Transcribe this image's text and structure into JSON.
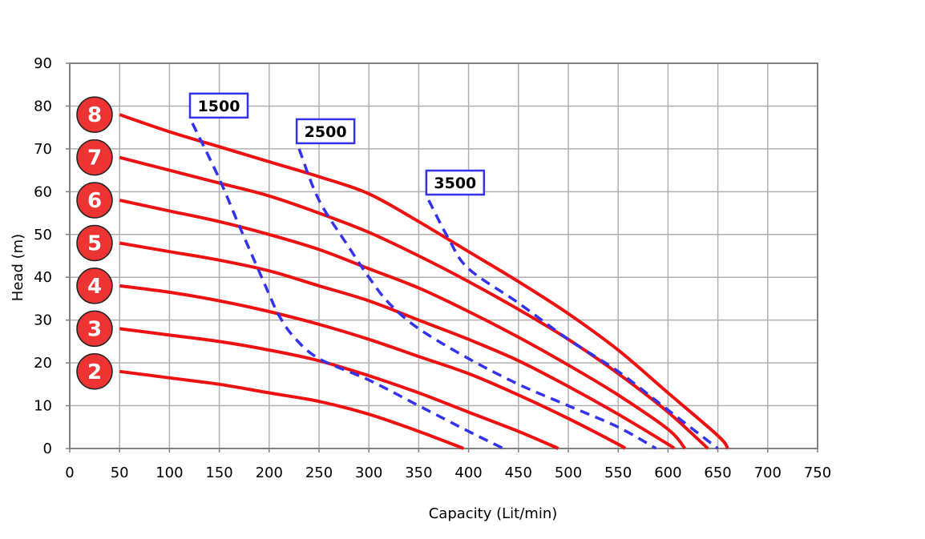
{
  "chart_data": {
    "type": "line",
    "title": "",
    "xlabel": "Capacity (Lit/min)",
    "ylabel": "Head (m)",
    "xlim": [
      0,
      750
    ],
    "ylim": [
      0,
      90
    ],
    "x_ticks": [
      0,
      50,
      100,
      150,
      200,
      250,
      300,
      350,
      400,
      450,
      500,
      550,
      600,
      650,
      700,
      750
    ],
    "y_ticks": [
      0,
      10,
      20,
      30,
      40,
      50,
      60,
      70,
      80,
      90
    ],
    "grid": true,
    "colors": {
      "stage_curve": "#ee1111",
      "speed_curve": "#3333ee",
      "badge_fill": "#ee3333",
      "grid": "#b0b0b0",
      "axis": "#808080"
    },
    "series": [
      {
        "name": "8",
        "kind": "stage",
        "points": [
          [
            50,
            78
          ],
          [
            100,
            74
          ],
          [
            150,
            70.5
          ],
          [
            200,
            67
          ],
          [
            250,
            63.5
          ],
          [
            300,
            59.5
          ],
          [
            350,
            53
          ],
          [
            400,
            46
          ],
          [
            450,
            39
          ],
          [
            500,
            31.5
          ],
          [
            550,
            23
          ],
          [
            600,
            13
          ],
          [
            650,
            3
          ],
          [
            660,
            0
          ]
        ]
      },
      {
        "name": "7",
        "kind": "stage",
        "points": [
          [
            50,
            68
          ],
          [
            100,
            65
          ],
          [
            150,
            62
          ],
          [
            200,
            59
          ],
          [
            250,
            55
          ],
          [
            300,
            50.5
          ],
          [
            350,
            45
          ],
          [
            400,
            39
          ],
          [
            450,
            32.5
          ],
          [
            500,
            25.5
          ],
          [
            550,
            17.5
          ],
          [
            600,
            8.5
          ],
          [
            640,
            0
          ]
        ]
      },
      {
        "name": "6",
        "kind": "stage",
        "points": [
          [
            50,
            58
          ],
          [
            100,
            55.5
          ],
          [
            150,
            53
          ],
          [
            200,
            50
          ],
          [
            250,
            46.5
          ],
          [
            300,
            42
          ],
          [
            350,
            37.5
          ],
          [
            400,
            32
          ],
          [
            450,
            26
          ],
          [
            500,
            19.5
          ],
          [
            550,
            12.5
          ],
          [
            600,
            4.5
          ],
          [
            617,
            0
          ]
        ]
      },
      {
        "name": "5",
        "kind": "stage",
        "points": [
          [
            50,
            48
          ],
          [
            100,
            46
          ],
          [
            150,
            44
          ],
          [
            200,
            41.5
          ],
          [
            250,
            38
          ],
          [
            300,
            34.5
          ],
          [
            350,
            30
          ],
          [
            400,
            25.5
          ],
          [
            450,
            20.5
          ],
          [
            500,
            14.5
          ],
          [
            550,
            8
          ],
          [
            600,
            1
          ],
          [
            606,
            0
          ]
        ]
      },
      {
        "name": "4",
        "kind": "stage",
        "points": [
          [
            50,
            38
          ],
          [
            100,
            36.5
          ],
          [
            150,
            34.5
          ],
          [
            200,
            32
          ],
          [
            250,
            29
          ],
          [
            300,
            25.5
          ],
          [
            350,
            21.5
          ],
          [
            400,
            17.5
          ],
          [
            450,
            12.5
          ],
          [
            500,
            7
          ],
          [
            550,
            1
          ],
          [
            557,
            0
          ]
        ]
      },
      {
        "name": "3",
        "kind": "stage",
        "points": [
          [
            50,
            28
          ],
          [
            100,
            26.5
          ],
          [
            150,
            25
          ],
          [
            200,
            23
          ],
          [
            250,
            20.5
          ],
          [
            300,
            17
          ],
          [
            350,
            13
          ],
          [
            400,
            8.5
          ],
          [
            450,
            4
          ],
          [
            490,
            0
          ]
        ]
      },
      {
        "name": "2",
        "kind": "stage",
        "points": [
          [
            50,
            18
          ],
          [
            100,
            16.5
          ],
          [
            150,
            15
          ],
          [
            200,
            13
          ],
          [
            250,
            11
          ],
          [
            300,
            8
          ],
          [
            350,
            4
          ],
          [
            395,
            0
          ]
        ]
      },
      {
        "name": "1500",
        "kind": "speed",
        "points": [
          [
            123,
            76
          ],
          [
            150,
            63
          ],
          [
            170,
            52
          ],
          [
            185,
            44
          ],
          [
            200,
            36
          ],
          [
            210,
            31
          ],
          [
            225,
            26
          ],
          [
            250,
            21
          ],
          [
            300,
            16
          ],
          [
            350,
            10
          ],
          [
            400,
            4
          ],
          [
            435,
            0
          ]
        ]
      },
      {
        "name": "2500",
        "kind": "speed",
        "points": [
          [
            230,
            70
          ],
          [
            250,
            58
          ],
          [
            280,
            47
          ],
          [
            300,
            40
          ],
          [
            320,
            34
          ],
          [
            350,
            28
          ],
          [
            400,
            21
          ],
          [
            450,
            15
          ],
          [
            500,
            10
          ],
          [
            550,
            5
          ],
          [
            588,
            0
          ]
        ]
      },
      {
        "name": "3500",
        "kind": "speed",
        "points": [
          [
            360,
            58
          ],
          [
            380,
            49
          ],
          [
            400,
            42
          ],
          [
            450,
            34
          ],
          [
            500,
            25.5
          ],
          [
            550,
            18
          ],
          [
            600,
            9
          ],
          [
            650,
            0
          ]
        ]
      }
    ],
    "stage_badges": [
      "8",
      "7",
      "6",
      "5",
      "4",
      "3",
      "2"
    ],
    "speed_labels": [
      "1500",
      "2500",
      "3500"
    ]
  }
}
